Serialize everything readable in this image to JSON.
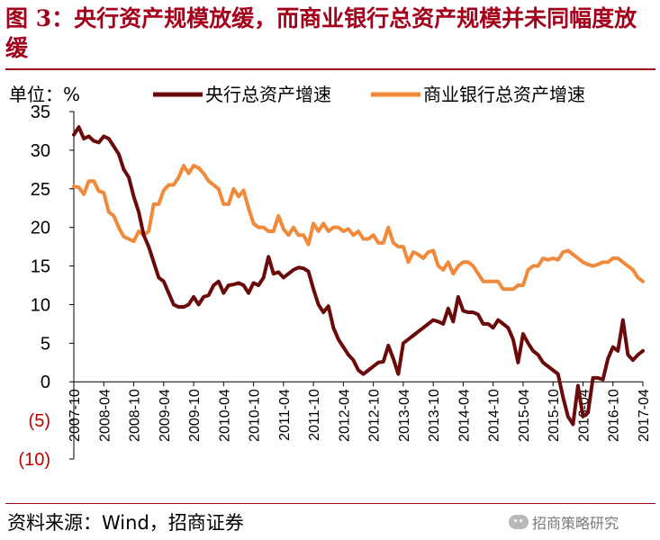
{
  "header": {
    "title": "图 3：央行资产规模放缓，而商业银行总资产规模并未同幅度放缓"
  },
  "footer": {
    "source": "资料来源：Wind，招商证券",
    "watermark": "招商策略研究"
  },
  "chart_data": {
    "type": "line",
    "title": "图 3：央行资产规模放缓，而商业银行总资产规模并未同幅度放缓",
    "ylabel": "单位：%",
    "xlabel": "",
    "ylim": [
      -10,
      35
    ],
    "grid": false,
    "legend_position": "top",
    "yticks": [
      35,
      30,
      25,
      20,
      15,
      10,
      5,
      0,
      -5,
      -10
    ],
    "ytick_labels": [
      "35",
      "30",
      "25",
      "20",
      "15",
      "10",
      "5",
      "0",
      "(5)",
      "(10)"
    ],
    "ytick_colors": [
      "#000000",
      "#000000",
      "#000000",
      "#000000",
      "#000000",
      "#000000",
      "#000000",
      "#000000",
      "#c00000",
      "#c00000"
    ],
    "x_range": [
      "2007-10",
      "2017-04"
    ],
    "xticks": [
      "2007-10",
      "2008-04",
      "2008-10",
      "2009-04",
      "2009-10",
      "2010-04",
      "2010-10",
      "2011-04",
      "2011-10",
      "2012-04",
      "2012-10",
      "2013-04",
      "2013-10",
      "2014-04",
      "2014-10",
      "2015-04",
      "2015-10",
      "2016-04",
      "2016-10",
      "2017-04"
    ],
    "series": [
      {
        "name": "央行总资产增速",
        "color": "#6b0a0a",
        "values": [
          [
            "2007-10",
            32.0
          ],
          [
            "2007-11",
            33.0
          ],
          [
            "2007-12",
            31.5
          ],
          [
            "2008-01",
            31.8
          ],
          [
            "2008-02",
            31.2
          ],
          [
            "2008-03",
            31.0
          ],
          [
            "2008-04",
            31.8
          ],
          [
            "2008-05",
            31.5
          ],
          [
            "2008-06",
            30.5
          ],
          [
            "2008-07",
            29.5
          ],
          [
            "2008-08",
            27.5
          ],
          [
            "2008-09",
            26.5
          ],
          [
            "2008-10",
            24.0
          ],
          [
            "2008-11",
            22.0
          ],
          [
            "2008-12",
            19.0
          ],
          [
            "2009-01",
            17.5
          ],
          [
            "2009-02",
            15.5
          ],
          [
            "2009-03",
            13.5
          ],
          [
            "2009-04",
            13.0
          ],
          [
            "2009-05",
            11.5
          ],
          [
            "2009-06",
            10.0
          ],
          [
            "2009-07",
            9.7
          ],
          [
            "2009-08",
            9.7
          ],
          [
            "2009-09",
            10.0
          ],
          [
            "2009-10",
            11.0
          ],
          [
            "2009-11",
            10.0
          ],
          [
            "2009-12",
            11.0
          ],
          [
            "2010-01",
            11.2
          ],
          [
            "2010-02",
            12.5
          ],
          [
            "2010-03",
            13.0
          ],
          [
            "2010-04",
            11.5
          ],
          [
            "2010-05",
            12.5
          ],
          [
            "2010-06",
            12.6
          ],
          [
            "2010-07",
            12.8
          ],
          [
            "2010-08",
            12.5
          ],
          [
            "2010-09",
            11.5
          ],
          [
            "2010-10",
            12.8
          ],
          [
            "2010-11",
            12.5
          ],
          [
            "2010-12",
            13.5
          ],
          [
            "2011-01",
            16.2
          ],
          [
            "2011-02",
            14.0
          ],
          [
            "2011-03",
            14.2
          ],
          [
            "2011-04",
            13.5
          ],
          [
            "2011-05",
            14.0
          ],
          [
            "2011-06",
            14.5
          ],
          [
            "2011-07",
            14.8
          ],
          [
            "2011-08",
            14.7
          ],
          [
            "2011-09",
            14.3
          ],
          [
            "2011-10",
            12.0
          ],
          [
            "2011-11",
            10.0
          ],
          [
            "2011-12",
            9.0
          ],
          [
            "2012-01",
            9.8
          ],
          [
            "2012-02",
            7.0
          ],
          [
            "2012-03",
            5.5
          ],
          [
            "2012-04",
            4.5
          ],
          [
            "2012-05",
            3.5
          ],
          [
            "2012-06",
            2.8
          ],
          [
            "2012-07",
            1.5
          ],
          [
            "2012-08",
            1.0
          ],
          [
            "2012-09",
            1.5
          ],
          [
            "2012-10",
            2.0
          ],
          [
            "2012-11",
            2.5
          ],
          [
            "2012-12",
            2.6
          ],
          [
            "2013-01",
            4.7
          ],
          [
            "2013-02",
            3.0
          ],
          [
            "2013-03",
            1.0
          ],
          [
            "2013-04",
            5.0
          ],
          [
            "2013-05",
            5.5
          ],
          [
            "2013-06",
            6.0
          ],
          [
            "2013-07",
            6.5
          ],
          [
            "2013-08",
            7.0
          ],
          [
            "2013-09",
            7.5
          ],
          [
            "2013-10",
            8.0
          ],
          [
            "2013-11",
            7.8
          ],
          [
            "2013-12",
            7.5
          ],
          [
            "2014-01",
            9.5
          ],
          [
            "2014-02",
            7.8
          ],
          [
            "2014-03",
            11.0
          ],
          [
            "2014-04",
            9.2
          ],
          [
            "2014-05",
            9.0
          ],
          [
            "2014-06",
            9.0
          ],
          [
            "2014-07",
            8.7
          ],
          [
            "2014-08",
            7.5
          ],
          [
            "2014-09",
            7.5
          ],
          [
            "2014-10",
            7.0
          ],
          [
            "2014-11",
            8.0
          ],
          [
            "2014-12",
            7.5
          ],
          [
            "2015-01",
            7.0
          ],
          [
            "2015-02",
            5.5
          ],
          [
            "2015-03",
            2.5
          ],
          [
            "2015-04",
            6.2
          ],
          [
            "2015-05",
            5.0
          ],
          [
            "2015-06",
            4.0
          ],
          [
            "2015-07",
            3.5
          ],
          [
            "2015-08",
            2.5
          ],
          [
            "2015-09",
            2.0
          ],
          [
            "2015-10",
            1.5
          ],
          [
            "2015-11",
            1.0
          ],
          [
            "2015-12",
            -2.0
          ],
          [
            "2016-01",
            -4.5
          ],
          [
            "2016-02",
            -5.5
          ],
          [
            "2016-03",
            -0.5
          ],
          [
            "2016-04",
            -4.5
          ],
          [
            "2016-05",
            -4.0
          ],
          [
            "2016-06",
            0.5
          ],
          [
            "2016-07",
            0.5
          ],
          [
            "2016-08",
            0.3
          ],
          [
            "2016-09",
            3.0
          ],
          [
            "2016-10",
            4.5
          ],
          [
            "2016-11",
            4.0
          ],
          [
            "2016-12",
            8.0
          ],
          [
            "2017-01",
            3.5
          ],
          [
            "2017-02",
            2.8
          ],
          [
            "2017-03",
            3.5
          ],
          [
            "2017-04",
            4.0
          ]
        ]
      },
      {
        "name": "商业银行总资产增速",
        "color": "#f0893a",
        "values": [
          [
            "2007-10",
            25.3
          ],
          [
            "2007-11",
            25.2
          ],
          [
            "2007-12",
            24.3
          ],
          [
            "2008-01",
            26.0
          ],
          [
            "2008-02",
            26.0
          ],
          [
            "2008-03",
            24.7
          ],
          [
            "2008-04",
            24.5
          ],
          [
            "2008-05",
            22.0
          ],
          [
            "2008-06",
            21.5
          ],
          [
            "2008-07",
            20.0
          ],
          [
            "2008-08",
            18.8
          ],
          [
            "2008-09",
            18.5
          ],
          [
            "2008-10",
            18.2
          ],
          [
            "2008-11",
            19.5
          ],
          [
            "2008-12",
            19.0
          ],
          [
            "2009-01",
            19.5
          ],
          [
            "2009-02",
            23.0
          ],
          [
            "2009-03",
            23.0
          ],
          [
            "2009-04",
            24.8
          ],
          [
            "2009-05",
            25.5
          ],
          [
            "2009-06",
            25.5
          ],
          [
            "2009-07",
            26.5
          ],
          [
            "2009-08",
            28.0
          ],
          [
            "2009-09",
            27.0
          ],
          [
            "2009-10",
            28.0
          ],
          [
            "2009-11",
            27.7
          ],
          [
            "2009-12",
            27.0
          ],
          [
            "2010-01",
            26.0
          ],
          [
            "2010-02",
            25.5
          ],
          [
            "2010-03",
            25.0
          ],
          [
            "2010-04",
            23.0
          ],
          [
            "2010-05",
            23.0
          ],
          [
            "2010-06",
            25.0
          ],
          [
            "2010-07",
            24.0
          ],
          [
            "2010-08",
            24.8
          ],
          [
            "2010-09",
            22.5
          ],
          [
            "2010-10",
            20.5
          ],
          [
            "2010-11",
            20.0
          ],
          [
            "2010-12",
            20.0
          ],
          [
            "2011-01",
            19.5
          ],
          [
            "2011-02",
            19.5
          ],
          [
            "2011-03",
            21.5
          ],
          [
            "2011-04",
            19.8
          ],
          [
            "2011-05",
            19.0
          ],
          [
            "2011-06",
            20.0
          ],
          [
            "2011-07",
            19.0
          ],
          [
            "2011-08",
            19.0
          ],
          [
            "2011-09",
            17.8
          ],
          [
            "2011-10",
            20.5
          ],
          [
            "2011-11",
            19.5
          ],
          [
            "2011-12",
            20.5
          ],
          [
            "2012-01",
            19.5
          ],
          [
            "2012-02",
            20.0
          ],
          [
            "2012-03",
            20.0
          ],
          [
            "2012-04",
            19.5
          ],
          [
            "2012-05",
            19.8
          ],
          [
            "2012-06",
            19.0
          ],
          [
            "2012-07",
            19.5
          ],
          [
            "2012-08",
            18.5
          ],
          [
            "2012-09",
            18.5
          ],
          [
            "2012-10",
            19.0
          ],
          [
            "2012-11",
            18.0
          ],
          [
            "2012-12",
            18.0
          ],
          [
            "2013-01",
            20.0
          ],
          [
            "2013-02",
            18.0
          ],
          [
            "2013-03",
            17.5
          ],
          [
            "2013-04",
            17.5
          ],
          [
            "2013-05",
            15.5
          ],
          [
            "2013-06",
            16.8
          ],
          [
            "2013-07",
            16.5
          ],
          [
            "2013-08",
            16.0
          ],
          [
            "2013-09",
            16.8
          ],
          [
            "2013-10",
            17.0
          ],
          [
            "2013-11",
            15.0
          ],
          [
            "2013-12",
            14.5
          ],
          [
            "2014-01",
            15.5
          ],
          [
            "2014-02",
            14.0
          ],
          [
            "2014-03",
            15.0
          ],
          [
            "2014-04",
            15.5
          ],
          [
            "2014-05",
            15.5
          ],
          [
            "2014-06",
            15.0
          ],
          [
            "2014-07",
            14.0
          ],
          [
            "2014-08",
            13.0
          ],
          [
            "2014-09",
            13.0
          ],
          [
            "2014-10",
            13.0
          ],
          [
            "2014-11",
            13.0
          ],
          [
            "2014-12",
            12.0
          ],
          [
            "2015-01",
            12.0
          ],
          [
            "2015-02",
            12.0
          ],
          [
            "2015-03",
            12.5
          ],
          [
            "2015-04",
            12.5
          ],
          [
            "2015-05",
            14.5
          ],
          [
            "2015-06",
            15.0
          ],
          [
            "2015-07",
            15.0
          ],
          [
            "2015-08",
            16.0
          ],
          [
            "2015-09",
            15.8
          ],
          [
            "2015-10",
            16.0
          ],
          [
            "2015-11",
            15.8
          ],
          [
            "2015-12",
            16.8
          ],
          [
            "2016-01",
            17.0
          ],
          [
            "2016-02",
            16.5
          ],
          [
            "2016-03",
            16.0
          ],
          [
            "2016-04",
            15.5
          ],
          [
            "2016-05",
            15.2
          ],
          [
            "2016-06",
            15.0
          ],
          [
            "2016-07",
            15.2
          ],
          [
            "2016-08",
            15.5
          ],
          [
            "2016-09",
            15.5
          ],
          [
            "2016-10",
            16.0
          ],
          [
            "2016-11",
            16.0
          ],
          [
            "2016-12",
            15.5
          ],
          [
            "2017-01",
            15.0
          ],
          [
            "2017-02",
            14.5
          ],
          [
            "2017-03",
            13.5
          ],
          [
            "2017-04",
            13.0
          ]
        ]
      }
    ]
  }
}
